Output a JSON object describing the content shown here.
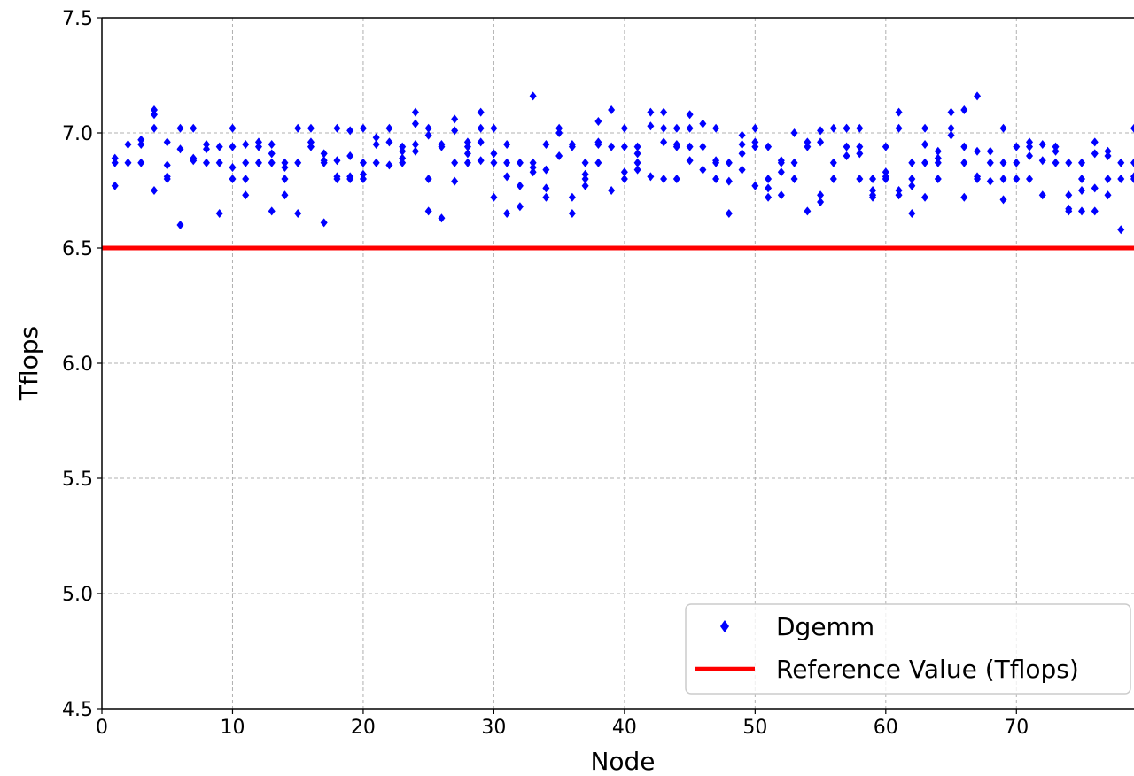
{
  "chart_data": {
    "type": "scatter",
    "xlabel": "Node",
    "ylabel": "Tflops",
    "xlim": [
      0,
      79
    ],
    "ylim": [
      4.5,
      7.5
    ],
    "x_ticks": [
      0,
      10,
      20,
      30,
      40,
      50,
      60,
      70
    ],
    "y_ticks": [
      4.5,
      5.0,
      5.5,
      6.0,
      6.5,
      7.0,
      7.5
    ],
    "grid": true,
    "legend_position": "lower-right",
    "colors": {
      "dgemm": "#0000ff",
      "reference": "#ff0000"
    },
    "series": [
      {
        "name": "Dgemm",
        "marker": "diamond",
        "points": [
          [
            1,
            6.89
          ],
          [
            1,
            6.87
          ],
          [
            1,
            6.77
          ],
          [
            2,
            6.95
          ],
          [
            2,
            6.87
          ],
          [
            3,
            6.97
          ],
          [
            3,
            6.95
          ],
          [
            3,
            6.87
          ],
          [
            4,
            7.1
          ],
          [
            4,
            7.08
          ],
          [
            4,
            7.02
          ],
          [
            4,
            6.75
          ],
          [
            5,
            6.96
          ],
          [
            5,
            6.86
          ],
          [
            5,
            6.81
          ],
          [
            5,
            6.8
          ],
          [
            6,
            7.02
          ],
          [
            6,
            6.93
          ],
          [
            6,
            6.6
          ],
          [
            7,
            7.02
          ],
          [
            7,
            6.89
          ],
          [
            7,
            6.88
          ],
          [
            8,
            6.95
          ],
          [
            8,
            6.93
          ],
          [
            8,
            6.87
          ],
          [
            9,
            6.94
          ],
          [
            9,
            6.87
          ],
          [
            9,
            6.65
          ],
          [
            10,
            7.02
          ],
          [
            10,
            6.94
          ],
          [
            10,
            6.85
          ],
          [
            10,
            6.8
          ],
          [
            11,
            6.95
          ],
          [
            11,
            6.87
          ],
          [
            11,
            6.8
          ],
          [
            11,
            6.73
          ],
          [
            12,
            6.96
          ],
          [
            12,
            6.94
          ],
          [
            12,
            6.87
          ],
          [
            13,
            6.95
          ],
          [
            13,
            6.91
          ],
          [
            13,
            6.87
          ],
          [
            13,
            6.66
          ],
          [
            14,
            6.87
          ],
          [
            14,
            6.85
          ],
          [
            14,
            6.8
          ],
          [
            14,
            6.73
          ],
          [
            15,
            7.02
          ],
          [
            15,
            6.87
          ],
          [
            15,
            6.65
          ],
          [
            16,
            7.02
          ],
          [
            16,
            6.96
          ],
          [
            16,
            6.94
          ],
          [
            17,
            6.91
          ],
          [
            17,
            6.88
          ],
          [
            17,
            6.87
          ],
          [
            17,
            6.61
          ],
          [
            18,
            7.02
          ],
          [
            18,
            6.88
          ],
          [
            18,
            6.81
          ],
          [
            18,
            6.8
          ],
          [
            19,
            7.01
          ],
          [
            19,
            6.9
          ],
          [
            19,
            6.81
          ],
          [
            19,
            6.8
          ],
          [
            20,
            7.02
          ],
          [
            20,
            6.87
          ],
          [
            20,
            6.82
          ],
          [
            20,
            6.8
          ],
          [
            21,
            6.98
          ],
          [
            21,
            6.95
          ],
          [
            21,
            6.87
          ],
          [
            22,
            7.02
          ],
          [
            22,
            6.96
          ],
          [
            22,
            6.86
          ],
          [
            23,
            6.94
          ],
          [
            23,
            6.92
          ],
          [
            23,
            6.89
          ],
          [
            23,
            6.87
          ],
          [
            24,
            7.09
          ],
          [
            24,
            7.04
          ],
          [
            24,
            6.95
          ],
          [
            24,
            6.92
          ],
          [
            25,
            7.02
          ],
          [
            25,
            6.99
          ],
          [
            25,
            6.8
          ],
          [
            25,
            6.66
          ],
          [
            26,
            6.95
          ],
          [
            26,
            6.94
          ],
          [
            26,
            6.63
          ],
          [
            27,
            7.06
          ],
          [
            27,
            7.01
          ],
          [
            27,
            6.87
          ],
          [
            27,
            6.79
          ],
          [
            28,
            6.96
          ],
          [
            28,
            6.94
          ],
          [
            28,
            6.91
          ],
          [
            28,
            6.87
          ],
          [
            29,
            7.09
          ],
          [
            29,
            7.02
          ],
          [
            29,
            6.96
          ],
          [
            29,
            6.88
          ],
          [
            30,
            7.02
          ],
          [
            30,
            6.91
          ],
          [
            30,
            6.87
          ],
          [
            30,
            6.72
          ],
          [
            31,
            6.95
          ],
          [
            31,
            6.87
          ],
          [
            31,
            6.81
          ],
          [
            31,
            6.65
          ],
          [
            32,
            6.87
          ],
          [
            32,
            6.77
          ],
          [
            32,
            6.68
          ],
          [
            33,
            7.16
          ],
          [
            33,
            6.87
          ],
          [
            33,
            6.85
          ],
          [
            33,
            6.83
          ],
          [
            34,
            6.95
          ],
          [
            34,
            6.84
          ],
          [
            34,
            6.76
          ],
          [
            34,
            6.72
          ],
          [
            35,
            7.02
          ],
          [
            35,
            7.0
          ],
          [
            35,
            6.9
          ],
          [
            36,
            6.95
          ],
          [
            36,
            6.94
          ],
          [
            36,
            6.72
          ],
          [
            36,
            6.65
          ],
          [
            37,
            6.87
          ],
          [
            37,
            6.82
          ],
          [
            37,
            6.8
          ],
          [
            37,
            6.77
          ],
          [
            38,
            7.05
          ],
          [
            38,
            6.96
          ],
          [
            38,
            6.95
          ],
          [
            38,
            6.87
          ],
          [
            39,
            7.1
          ],
          [
            39,
            6.94
          ],
          [
            39,
            6.75
          ],
          [
            40,
            7.02
          ],
          [
            40,
            6.94
          ],
          [
            40,
            6.83
          ],
          [
            40,
            6.8
          ],
          [
            41,
            6.94
          ],
          [
            41,
            6.91
          ],
          [
            41,
            6.87
          ],
          [
            41,
            6.84
          ],
          [
            42,
            7.09
          ],
          [
            42,
            7.03
          ],
          [
            42,
            6.81
          ],
          [
            43,
            7.09
          ],
          [
            43,
            7.02
          ],
          [
            43,
            6.96
          ],
          [
            43,
            6.8
          ],
          [
            44,
            7.02
          ],
          [
            44,
            6.95
          ],
          [
            44,
            6.94
          ],
          [
            44,
            6.8
          ],
          [
            45,
            7.08
          ],
          [
            45,
            7.02
          ],
          [
            45,
            6.94
          ],
          [
            45,
            6.88
          ],
          [
            46,
            7.04
          ],
          [
            46,
            6.94
          ],
          [
            46,
            6.84
          ],
          [
            47,
            7.02
          ],
          [
            47,
            6.88
          ],
          [
            47,
            6.87
          ],
          [
            47,
            6.8
          ],
          [
            48,
            6.87
          ],
          [
            48,
            6.79
          ],
          [
            48,
            6.65
          ],
          [
            49,
            6.99
          ],
          [
            49,
            6.95
          ],
          [
            49,
            6.91
          ],
          [
            49,
            6.84
          ],
          [
            50,
            7.02
          ],
          [
            50,
            6.96
          ],
          [
            50,
            6.94
          ],
          [
            50,
            6.77
          ],
          [
            51,
            6.94
          ],
          [
            51,
            6.8
          ],
          [
            51,
            6.76
          ],
          [
            51,
            6.72
          ],
          [
            52,
            6.88
          ],
          [
            52,
            6.87
          ],
          [
            52,
            6.83
          ],
          [
            52,
            6.73
          ],
          [
            53,
            7.0
          ],
          [
            53,
            6.87
          ],
          [
            53,
            6.8
          ],
          [
            54,
            6.96
          ],
          [
            54,
            6.94
          ],
          [
            54,
            6.66
          ],
          [
            55,
            7.01
          ],
          [
            55,
            6.96
          ],
          [
            55,
            6.73
          ],
          [
            55,
            6.7
          ],
          [
            56,
            7.02
          ],
          [
            56,
            6.87
          ],
          [
            56,
            6.8
          ],
          [
            57,
            7.02
          ],
          [
            57,
            7.02
          ],
          [
            57,
            6.94
          ],
          [
            57,
            6.9
          ],
          [
            58,
            7.02
          ],
          [
            58,
            6.94
          ],
          [
            58,
            6.91
          ],
          [
            58,
            6.8
          ],
          [
            59,
            6.8
          ],
          [
            59,
            6.75
          ],
          [
            59,
            6.73
          ],
          [
            59,
            6.72
          ],
          [
            60,
            6.94
          ],
          [
            60,
            6.83
          ],
          [
            60,
            6.81
          ],
          [
            60,
            6.8
          ],
          [
            61,
            7.09
          ],
          [
            61,
            7.02
          ],
          [
            61,
            6.75
          ],
          [
            61,
            6.73
          ],
          [
            62,
            6.87
          ],
          [
            62,
            6.8
          ],
          [
            62,
            6.77
          ],
          [
            62,
            6.65
          ],
          [
            63,
            7.02
          ],
          [
            63,
            6.95
          ],
          [
            63,
            6.87
          ],
          [
            63,
            6.72
          ],
          [
            64,
            6.92
          ],
          [
            64,
            6.89
          ],
          [
            64,
            6.87
          ],
          [
            64,
            6.8
          ],
          [
            65,
            7.09
          ],
          [
            65,
            7.02
          ],
          [
            65,
            6.99
          ],
          [
            66,
            7.1
          ],
          [
            66,
            6.94
          ],
          [
            66,
            6.87
          ],
          [
            66,
            6.72
          ],
          [
            67,
            7.16
          ],
          [
            67,
            6.92
          ],
          [
            67,
            6.81
          ],
          [
            67,
            6.8
          ],
          [
            68,
            6.92
          ],
          [
            68,
            6.87
          ],
          [
            68,
            6.79
          ],
          [
            69,
            7.02
          ],
          [
            69,
            6.87
          ],
          [
            69,
            6.8
          ],
          [
            69,
            6.71
          ],
          [
            70,
            6.94
          ],
          [
            70,
            6.87
          ],
          [
            70,
            6.8
          ],
          [
            71,
            6.96
          ],
          [
            71,
            6.94
          ],
          [
            71,
            6.9
          ],
          [
            71,
            6.8
          ],
          [
            72,
            6.95
          ],
          [
            72,
            6.88
          ],
          [
            72,
            6.73
          ],
          [
            73,
            6.94
          ],
          [
            73,
            6.92
          ],
          [
            73,
            6.87
          ],
          [
            74,
            6.87
          ],
          [
            74,
            6.73
          ],
          [
            74,
            6.67
          ],
          [
            74,
            6.66
          ],
          [
            75,
            6.87
          ],
          [
            75,
            6.8
          ],
          [
            75,
            6.75
          ],
          [
            75,
            6.66
          ],
          [
            76,
            6.96
          ],
          [
            76,
            6.91
          ],
          [
            76,
            6.76
          ],
          [
            76,
            6.66
          ],
          [
            77,
            6.92
          ],
          [
            77,
            6.9
          ],
          [
            77,
            6.8
          ],
          [
            77,
            6.73
          ],
          [
            78,
            6.87
          ],
          [
            78,
            6.8
          ],
          [
            78,
            6.58
          ],
          [
            79,
            7.02
          ],
          [
            79,
            6.87
          ],
          [
            79,
            6.81
          ],
          [
            79,
            6.8
          ]
        ]
      },
      {
        "name": "Reference Value (Tflops)",
        "type": "line",
        "y": 6.5
      }
    ]
  }
}
